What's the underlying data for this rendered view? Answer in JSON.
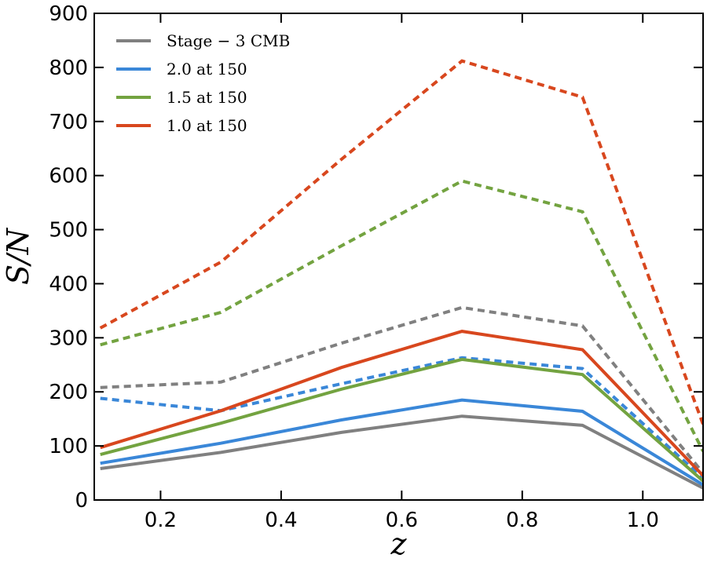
{
  "chart_data": {
    "type": "line",
    "xlabel": "z",
    "ylabel": "S/N",
    "xlim": [
      0.09,
      1.1
    ],
    "ylim": [
      0,
      900
    ],
    "xticks": [
      0.2,
      0.4,
      0.6,
      0.8,
      1.0
    ],
    "xtick_labels": [
      "0.2",
      "0.4",
      "0.6",
      "0.8",
      "1.0"
    ],
    "yticks": [
      0,
      100,
      200,
      300,
      400,
      500,
      600,
      700,
      800,
      900
    ],
    "ytick_labels": [
      "0",
      "100",
      "200",
      "300",
      "400",
      "500",
      "600",
      "700",
      "800",
      "900"
    ],
    "grid": false,
    "legend_position": "top-left",
    "x": [
      0.1,
      0.3,
      0.5,
      0.7,
      0.9,
      1.1
    ],
    "series": [
      {
        "name": "Stage − 3 CMB",
        "color": "#808080",
        "solid": [
          58,
          88,
          125,
          155,
          138,
          22
        ],
        "dashed": [
          208,
          218,
          290,
          356,
          322,
          50
        ]
      },
      {
        "name": "2.0 at 150",
        "color": "#3a87d8",
        "solid": [
          68,
          105,
          148,
          185,
          164,
          28
        ],
        "dashed": [
          188,
          165,
          215,
          263,
          243,
          40
        ]
      },
      {
        "name": "1.5 at 150",
        "color": "#73a340",
        "solid": [
          84,
          142,
          205,
          260,
          232,
          35
        ],
        "dashed": [
          287,
          347,
          470,
          590,
          533,
          90
        ]
      },
      {
        "name": "1.0 at 150",
        "color": "#d8471e",
        "solid": [
          97,
          165,
          245,
          312,
          278,
          45
        ],
        "dashed": [
          318,
          440,
          630,
          812,
          745,
          140
        ]
      }
    ]
  }
}
